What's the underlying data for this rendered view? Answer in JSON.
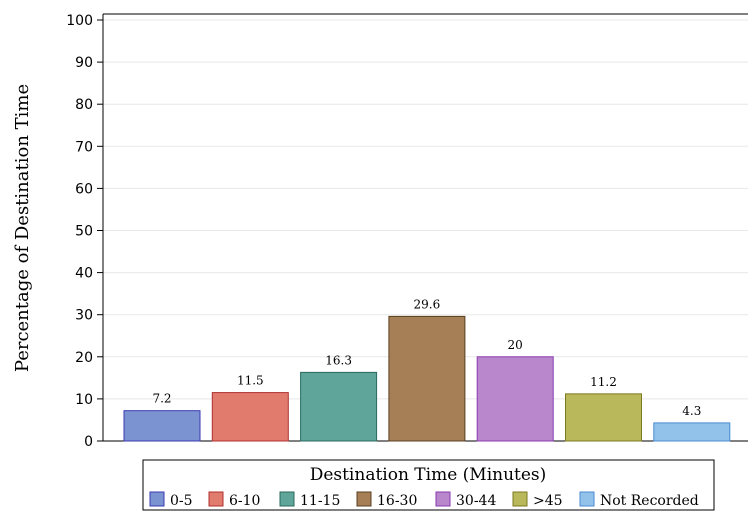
{
  "chart_data": {
    "type": "bar",
    "categories": [
      "0-5",
      "6-10",
      "11-15",
      "16-30",
      "30-44",
      ">45",
      "Not Recorded"
    ],
    "values": [
      7.2,
      11.5,
      16.3,
      29.6,
      20,
      11.2,
      4.3
    ],
    "data_labels": [
      "7.2",
      "11.5",
      "16.3",
      "29.6",
      "20",
      "11.2",
      "4.3"
    ],
    "colors": [
      "#7b93d0",
      "#e07b6e",
      "#5fa59a",
      "#a67f57",
      "#b987cc",
      "#b9b85a",
      "#92c2ea"
    ],
    "edge_colors": [
      "#3a3ab0",
      "#b03030",
      "#2a6a60",
      "#5a4020",
      "#8a3ab0",
      "#7a7a20",
      "#4a8ad0"
    ],
    "title": "",
    "xlabel": "",
    "ylabel": "Percentage of Destination Time",
    "ylim": [
      0,
      100
    ],
    "yticks": [
      0,
      10,
      20,
      30,
      40,
      50,
      60,
      70,
      80,
      90,
      100
    ],
    "grid": true,
    "legend": {
      "title": "Destination Time (Minutes)",
      "placement": "bottom"
    }
  }
}
